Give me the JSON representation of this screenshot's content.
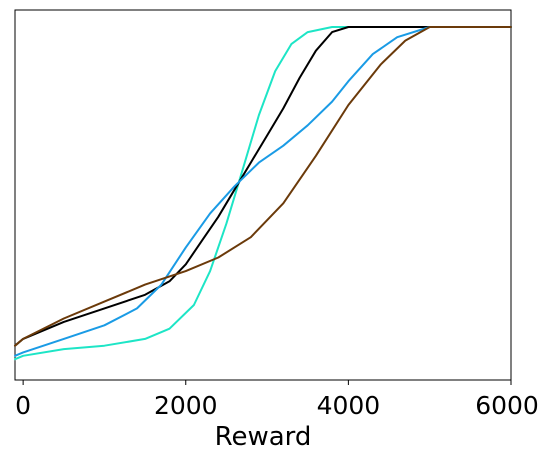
{
  "chart_data": {
    "type": "line",
    "xlabel": "Reward",
    "ylabel": "",
    "xlim": [
      -100,
      6000
    ],
    "ylim": [
      0,
      1
    ],
    "xticks": [
      0,
      2000,
      4000,
      6000
    ],
    "xtick_labels": [
      "0",
      "2000",
      "4000",
      "6000"
    ],
    "grid": false,
    "series": [
      {
        "color": "#1de5c6",
        "points": [
          [
            -100,
            0.02
          ],
          [
            0,
            0.03
          ],
          [
            500,
            0.05
          ],
          [
            1000,
            0.06
          ],
          [
            1500,
            0.08
          ],
          [
            1800,
            0.11
          ],
          [
            2100,
            0.18
          ],
          [
            2300,
            0.28
          ],
          [
            2500,
            0.42
          ],
          [
            2700,
            0.58
          ],
          [
            2900,
            0.74
          ],
          [
            3100,
            0.87
          ],
          [
            3300,
            0.95
          ],
          [
            3500,
            0.985
          ],
          [
            3800,
            1.0
          ],
          [
            6000,
            1.0
          ]
        ]
      },
      {
        "color": "#000000",
        "points": [
          [
            -100,
            0.06
          ],
          [
            0,
            0.08
          ],
          [
            500,
            0.13
          ],
          [
            1000,
            0.17
          ],
          [
            1500,
            0.21
          ],
          [
            1800,
            0.25
          ],
          [
            2000,
            0.3
          ],
          [
            2200,
            0.37
          ],
          [
            2400,
            0.44
          ],
          [
            2600,
            0.52
          ],
          [
            2800,
            0.6
          ],
          [
            3000,
            0.68
          ],
          [
            3200,
            0.76
          ],
          [
            3400,
            0.85
          ],
          [
            3600,
            0.93
          ],
          [
            3800,
            0.985
          ],
          [
            4000,
            1.0
          ],
          [
            6000,
            1.0
          ]
        ]
      },
      {
        "color": "#1a9be5",
        "points": [
          [
            -100,
            0.03
          ],
          [
            0,
            0.04
          ],
          [
            500,
            0.08
          ],
          [
            1000,
            0.12
          ],
          [
            1400,
            0.17
          ],
          [
            1700,
            0.24
          ],
          [
            2000,
            0.35
          ],
          [
            2300,
            0.45
          ],
          [
            2600,
            0.53
          ],
          [
            2900,
            0.6
          ],
          [
            3200,
            0.65
          ],
          [
            3500,
            0.71
          ],
          [
            3800,
            0.78
          ],
          [
            4000,
            0.84
          ],
          [
            4300,
            0.92
          ],
          [
            4600,
            0.97
          ],
          [
            5000,
            1.0
          ],
          [
            6000,
            1.0
          ]
        ]
      },
      {
        "color": "#6b3a0a",
        "points": [
          [
            -100,
            0.06
          ],
          [
            0,
            0.08
          ],
          [
            500,
            0.14
          ],
          [
            1000,
            0.19
          ],
          [
            1500,
            0.24
          ],
          [
            2000,
            0.28
          ],
          [
            2400,
            0.32
          ],
          [
            2800,
            0.38
          ],
          [
            3200,
            0.48
          ],
          [
            3600,
            0.62
          ],
          [
            4000,
            0.77
          ],
          [
            4400,
            0.89
          ],
          [
            4700,
            0.96
          ],
          [
            5000,
            1.0
          ],
          [
            6000,
            1.0
          ]
        ]
      }
    ]
  }
}
